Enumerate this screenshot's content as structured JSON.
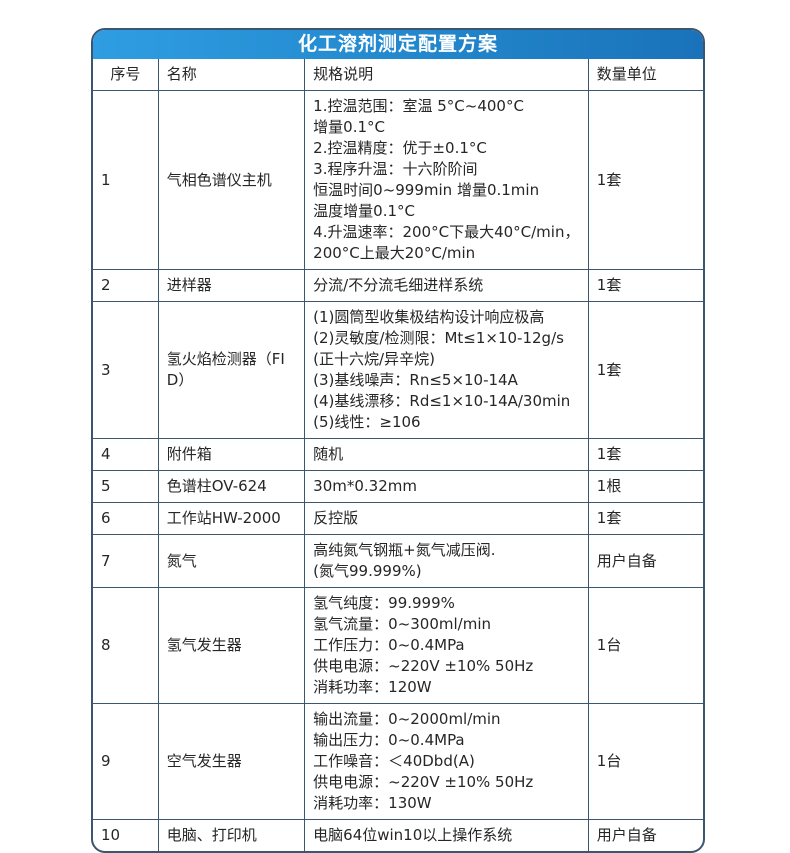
{
  "title": "化工溶剂测定配置方案",
  "colors": {
    "title_gradient_start": "#2f9de2",
    "title_gradient_end": "#1a72ba",
    "grid_line": "#3b566e",
    "title_text": "#ffffff",
    "body_text": "#262626"
  },
  "table": {
    "headers": [
      "序号",
      "名称",
      "规格说明",
      "数量单位"
    ],
    "rows": [
      {
        "no": "1",
        "name": "气相色谱仪主机",
        "specs": [
          "1.控温范围：室温 5°C~400°C",
          "增量0.1°C",
          "2.控温精度：优于±0.1°C",
          "3.程序升温：十六阶阶间",
          "恒温时间0~999min 增量0.1min",
          "温度增量0.1°C",
          "4.升温速率：200°C下最大40°C/min，",
          "200°C上最大20°C/min"
        ],
        "qty": "1套"
      },
      {
        "no": "2",
        "name": "进样器",
        "specs": [
          "分流/不分流毛细进样系统"
        ],
        "qty": "1套"
      },
      {
        "no": "3",
        "name": "氢火焰检测器（FID）",
        "specs": [
          "(1)圆筒型收集极结构设计响应极高",
          "(2)灵敏度/检测限：Mt≤1×10-12g/s",
          "(正十六烷/异辛烷)",
          "(3)基线噪声：Rn≤5×10-14A",
          "(4)基线漂移：Rd≤1×10-14A/30min",
          "(5)线性：≥106"
        ],
        "qty": "1套"
      },
      {
        "no": "4",
        "name": "附件箱",
        "specs": [
          "随机"
        ],
        "qty": "1套"
      },
      {
        "no": "5",
        "name": "色谱柱OV-624",
        "specs": [
          "30m*0.32mm"
        ],
        "qty": "1根"
      },
      {
        "no": "6",
        "name": "工作站HW-2000",
        "specs": [
          "反控版"
        ],
        "qty": "1套"
      },
      {
        "no": "7",
        "name": "氮气",
        "specs": [
          "高纯氮气钢瓶+氮气减压阀.",
          "(氮气99.999%)"
        ],
        "qty": "用户自备"
      },
      {
        "no": "8",
        "name": "氢气发生器",
        "specs": [
          "氢气纯度：99.999%",
          "氢气流量：0~300ml/min",
          "工作压力：0~0.4MPa",
          "供电电源：~220V ±10% 50Hz",
          "消耗功率：120W"
        ],
        "qty": "1台"
      },
      {
        "no": "9",
        "name": "空气发生器",
        "specs": [
          "输出流量：0~2000ml/min",
          "输出压力：0~0.4MPa",
          "工作噪音：＜40Dbd(A)",
          "供电电源：~220V ±10% 50Hz",
          "消耗功率：130W"
        ],
        "qty": "1台"
      },
      {
        "no": "10",
        "name": "电脑、打印机",
        "specs": [
          "电脑64位win10以上操作系统"
        ],
        "qty": "用户自备"
      }
    ]
  }
}
